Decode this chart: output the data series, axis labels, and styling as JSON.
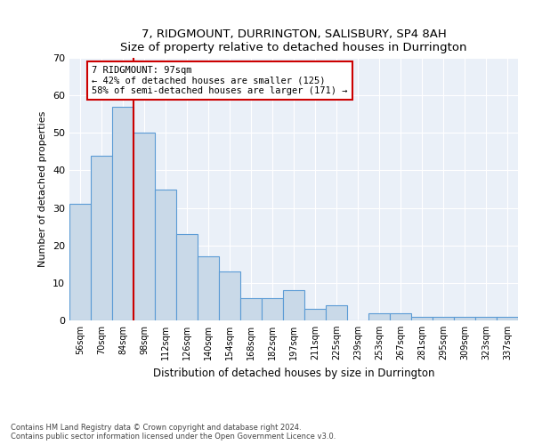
{
  "title": "7, RIDGMOUNT, DURRINGTON, SALISBURY, SP4 8AH",
  "subtitle": "Size of property relative to detached houses in Durrington",
  "xlabel": "Distribution of detached houses by size in Durrington",
  "ylabel": "Number of detached properties",
  "categories": [
    "56sqm",
    "70sqm",
    "84sqm",
    "98sqm",
    "112sqm",
    "126sqm",
    "140sqm",
    "154sqm",
    "168sqm",
    "182sqm",
    "197sqm",
    "211sqm",
    "225sqm",
    "239sqm",
    "253sqm",
    "267sqm",
    "281sqm",
    "295sqm",
    "309sqm",
    "323sqm",
    "337sqm"
  ],
  "values": [
    31,
    44,
    57,
    50,
    35,
    23,
    17,
    13,
    6,
    6,
    8,
    3,
    4,
    0,
    2,
    2,
    1,
    1,
    1,
    1,
    1
  ],
  "bar_color": "#c9d9e8",
  "bar_edge_color": "#5b9bd5",
  "vline_color": "#cc0000",
  "annotation_text": "7 RIDGMOUNT: 97sqm\n← 42% of detached houses are smaller (125)\n58% of semi-detached houses are larger (171) →",
  "annotation_box_color": "#ffffff",
  "annotation_box_edgecolor": "#cc0000",
  "ylim": [
    0,
    70
  ],
  "yticks": [
    0,
    10,
    20,
    30,
    40,
    50,
    60,
    70
  ],
  "background_color": "#eaf0f8",
  "footer_line1": "Contains HM Land Registry data © Crown copyright and database right 2024.",
  "footer_line2": "Contains public sector information licensed under the Open Government Licence v3.0."
}
